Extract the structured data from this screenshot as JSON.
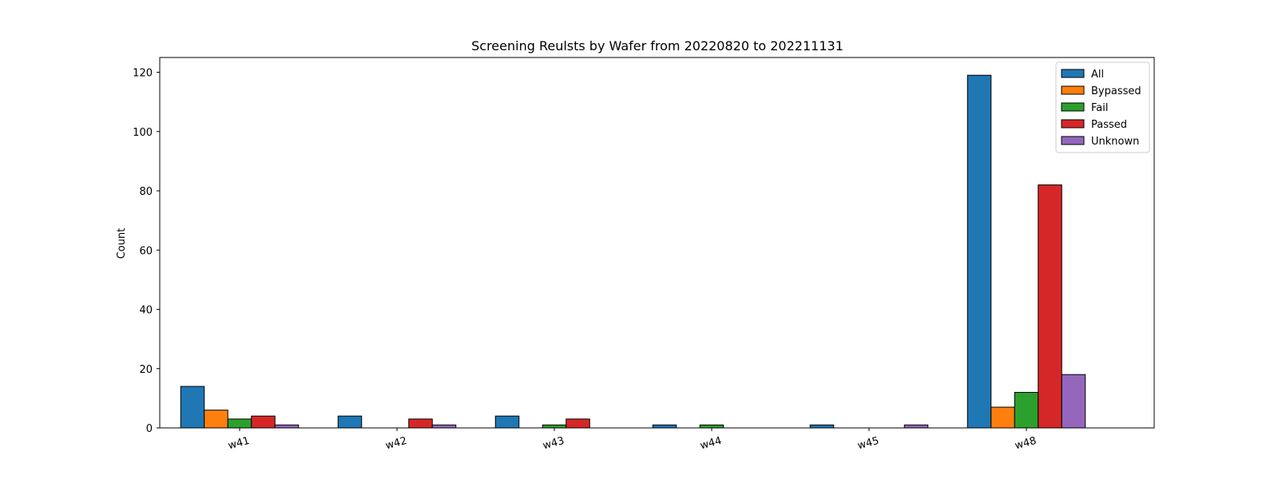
{
  "chart_data": {
    "type": "bar",
    "title": "Screening Reulsts by Wafer from 20220820 to 202211131",
    "xlabel": "",
    "ylabel": "Count",
    "categories": [
      "w41",
      "w42",
      "w43",
      "w44",
      "w45",
      "w48"
    ],
    "ylim": [
      0,
      125
    ],
    "yticks": [
      0,
      20,
      40,
      60,
      80,
      100,
      120
    ],
    "grid": false,
    "legend_position": "top-right",
    "series": [
      {
        "name": "All",
        "color": "#1f77b4",
        "values": [
          14,
          4,
          4,
          1,
          1,
          119
        ]
      },
      {
        "name": "Bypassed",
        "color": "#ff7f0e",
        "values": [
          6,
          0,
          0,
          0,
          0,
          7
        ]
      },
      {
        "name": "Fail",
        "color": "#2ca02c",
        "values": [
          3,
          0,
          1,
          1,
          0,
          12
        ]
      },
      {
        "name": "Passed",
        "color": "#d62728",
        "values": [
          4,
          3,
          3,
          0,
          0,
          82
        ]
      },
      {
        "name": "Unknown",
        "color": "#9467bd",
        "values": [
          1,
          1,
          0,
          0,
          1,
          18
        ]
      }
    ]
  }
}
